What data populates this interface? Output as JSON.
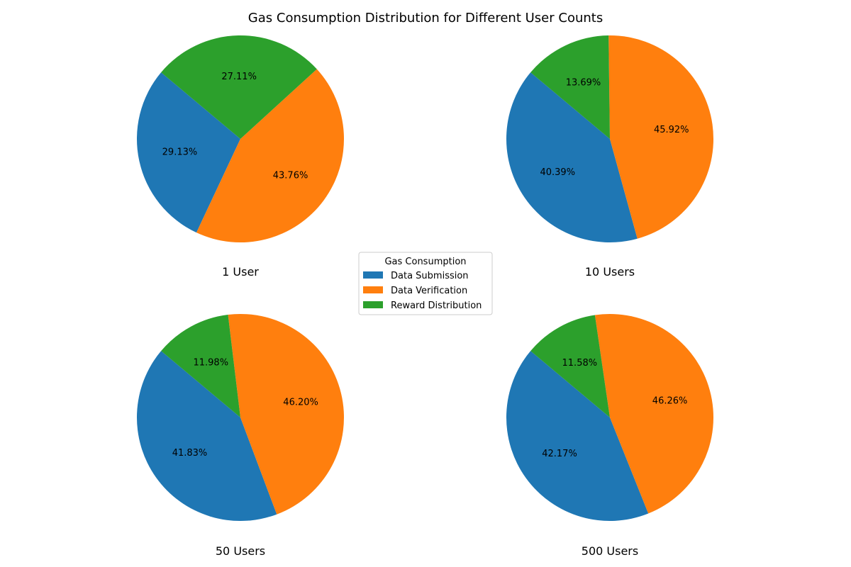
{
  "chart_data": {
    "type": "pie",
    "title": "Gas Consumption Distribution for Different User Counts",
    "legend": {
      "title": "Gas Consumption",
      "placement": "center",
      "entries": [
        "Data Submission",
        "Data Verification",
        "Reward Distribution"
      ]
    },
    "colors": {
      "Data Submission": "#1f77b4",
      "Data Verification": "#ff7f0e",
      "Reward Distribution": "#2ca02c"
    },
    "start_angle_deg": 140,
    "pies": [
      {
        "label": "1 User",
        "slices": [
          {
            "name": "Data Submission",
            "value": 29.13,
            "label": "29.13%"
          },
          {
            "name": "Data Verification",
            "value": 43.76,
            "label": "43.76%"
          },
          {
            "name": "Reward Distribution",
            "value": 27.11,
            "label": "27.11%"
          }
        ]
      },
      {
        "label": "10 Users",
        "slices": [
          {
            "name": "Data Submission",
            "value": 40.39,
            "label": "40.39%"
          },
          {
            "name": "Data Verification",
            "value": 45.92,
            "label": "45.92%"
          },
          {
            "name": "Reward Distribution",
            "value": 13.69,
            "label": "13.69%"
          }
        ]
      },
      {
        "label": "50 Users",
        "slices": [
          {
            "name": "Data Submission",
            "value": 41.83,
            "label": "41.83%"
          },
          {
            "name": "Data Verification",
            "value": 46.2,
            "label": "46.20%"
          },
          {
            "name": "Reward Distribution",
            "value": 11.98,
            "label": "11.98%"
          }
        ]
      },
      {
        "label": "500 Users",
        "slices": [
          {
            "name": "Data Submission",
            "value": 42.17,
            "label": "42.17%"
          },
          {
            "name": "Data Verification",
            "value": 46.26,
            "label": "46.26%"
          },
          {
            "name": "Reward Distribution",
            "value": 11.58,
            "label": "11.58%"
          }
        ]
      }
    ]
  }
}
